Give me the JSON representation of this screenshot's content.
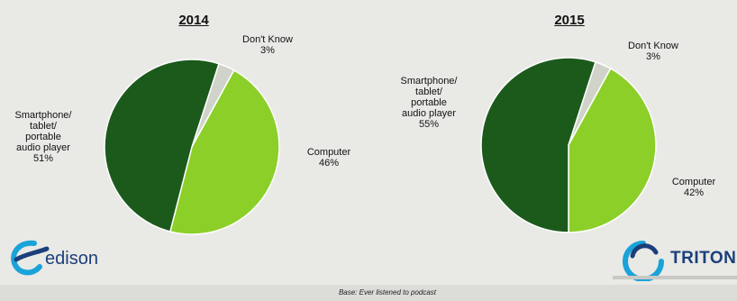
{
  "chart_data": [
    {
      "type": "pie",
      "title": "2014",
      "slices": [
        {
          "label_lines": [
            "Don't Know",
            "3%"
          ],
          "value": 3,
          "color": "#cfd3c9"
        },
        {
          "label_lines": [
            "Computer",
            "46%"
          ],
          "value": 46,
          "color": "#8ccf29"
        },
        {
          "label_lines": [
            "Smartphone/",
            "tablet/",
            "portable",
            "audio player",
            "51%"
          ],
          "value": 51,
          "color": "#1c5a1c"
        }
      ]
    },
    {
      "type": "pie",
      "title": "2015",
      "slices": [
        {
          "label_lines": [
            "Don't Know",
            "3%"
          ],
          "value": 3,
          "color": "#cfd3c9"
        },
        {
          "label_lines": [
            "Computer",
            "42%"
          ],
          "value": 42,
          "color": "#8ccf29"
        },
        {
          "label_lines": [
            "Smartphone/",
            "tablet/",
            "portable",
            "audio player",
            "55%"
          ],
          "value": 55,
          "color": "#1c5a1c"
        }
      ]
    }
  ],
  "footer": {
    "base_note": "Base: Ever listened to podcast",
    "edison_logo_text": "edison",
    "triton_logo_text": "TRITON"
  },
  "colors": {
    "logo_blue": "#1b3f7a",
    "logo_cyan": "#1aa3d9"
  }
}
